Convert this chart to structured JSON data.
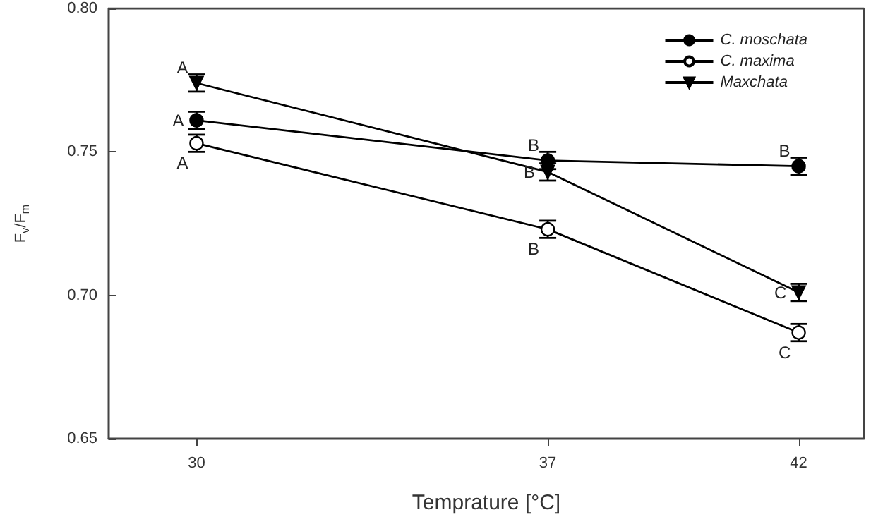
{
  "chart_data": {
    "type": "line",
    "xlabel": "Temprature [°C]",
    "ylabel": "F$_{v}$/F$_{m}$",
    "x": [
      30,
      37,
      42
    ],
    "xlim": [
      28.25,
      43.3
    ],
    "xticks": [
      30,
      37,
      42
    ],
    "ylim": [
      0.65,
      0.8
    ],
    "yticks": [
      {
        "value": 0.65,
        "label": "0.65"
      },
      {
        "value": 0.7,
        "label": "0.70"
      },
      {
        "value": 0.75,
        "label": "0.75"
      },
      {
        "value": 0.8,
        "label": "0.80"
      }
    ],
    "series": [
      {
        "name": "C. moschata",
        "color": "#000000",
        "marker": "circle",
        "values": [
          0.761,
          0.747,
          0.745
        ],
        "errors": [
          0.003,
          0.003,
          0.003
        ]
      },
      {
        "name": "C. maxima",
        "color": "#000000",
        "marker": "empty-circle",
        "values": [
          0.753,
          0.723,
          0.687
        ],
        "errors": [
          0.003,
          0.003,
          0.003
        ]
      },
      {
        "name": "Maxchata",
        "color": "#000000",
        "marker": "triangle-down",
        "values": [
          0.774,
          0.743,
          0.701
        ],
        "errors": [
          0.003,
          0.003,
          0.003
        ]
      }
    ],
    "annotations": [
      {
        "text": "A",
        "x": 30,
        "y": 0.774
      },
      {
        "text": "A",
        "x": 30,
        "y": 0.761
      },
      {
        "text": "A",
        "x": 30,
        "y": 0.753
      },
      {
        "text": "B",
        "x": 37,
        "y": 0.747
      },
      {
        "text": "B",
        "x": 37,
        "y": 0.743
      },
      {
        "text": "B",
        "x": 37,
        "y": 0.723
      },
      {
        "text": "B",
        "x": 42,
        "y": 0.745
      },
      {
        "text": "C",
        "x": 42,
        "y": 0.701
      },
      {
        "text": "C",
        "x": 42,
        "y": 0.687
      }
    ],
    "legend": "top right",
    "grid": false,
    "line_style": "solid"
  }
}
